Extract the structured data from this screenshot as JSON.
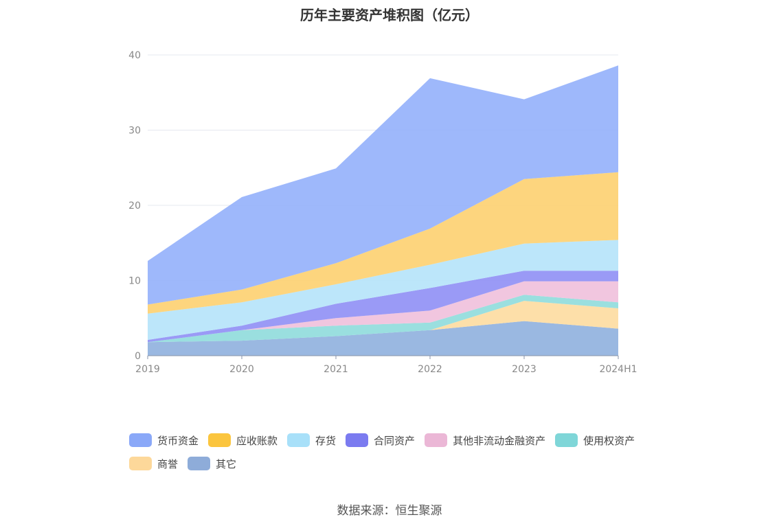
{
  "chart_data": {
    "type": "area",
    "stacked": true,
    "title": "历年主要资产堆积图（亿元）",
    "categories": [
      "2019",
      "2020",
      "2021",
      "2022",
      "2023",
      "2024H1"
    ],
    "ylim": [
      0,
      40
    ],
    "yticks": [
      0,
      10,
      20,
      30,
      40
    ],
    "grid": true,
    "legend_position": "bottom",
    "series": [
      {
        "name": "其它",
        "color": "#8fb0de",
        "values": [
          1.8,
          2.0,
          2.6,
          3.4,
          4.6,
          3.6
        ]
      },
      {
        "name": "商誉",
        "color": "#fddba0",
        "values": [
          0.0,
          0.0,
          0.0,
          0.0,
          2.7,
          2.7
        ]
      },
      {
        "name": "使用权资产",
        "color": "#8fdcdc",
        "values": [
          0.0,
          1.4,
          1.4,
          1.0,
          0.8,
          0.8
        ]
      },
      {
        "name": "其他非流动金融资产",
        "color": "#f0c0dc",
        "values": [
          0.0,
          0.0,
          1.0,
          1.6,
          1.8,
          2.8
        ]
      },
      {
        "name": "合同资产",
        "color": "#8f8ff5",
        "values": [
          0.3,
          0.6,
          1.9,
          3.0,
          1.4,
          1.4
        ]
      },
      {
        "name": "存货",
        "color": "#b5e3fa",
        "values": [
          3.5,
          3.1,
          2.6,
          3.1,
          3.6,
          4.1
        ]
      },
      {
        "name": "应收账款",
        "color": "#fdd070",
        "values": [
          1.2,
          1.7,
          2.8,
          4.8,
          8.6,
          9.0
        ]
      },
      {
        "name": "货币资金",
        "color": "#94b0fb",
        "values": [
          5.8,
          12.3,
          12.6,
          20.0,
          10.6,
          14.2
        ]
      }
    ]
  },
  "legend": {
    "items": [
      {
        "label": "货币资金",
        "color": "#8aa8f8"
      },
      {
        "label": "应收账款",
        "color": "#fbc53e"
      },
      {
        "label": "存货",
        "color": "#a8e0f9"
      },
      {
        "label": "合同资产",
        "color": "#7b7bf0"
      },
      {
        "label": "其他非流动金融资产",
        "color": "#ebb7d6"
      },
      {
        "label": "使用权资产",
        "color": "#7fd6d8"
      },
      {
        "label": "商誉",
        "color": "#fdd89a"
      },
      {
        "label": "其它",
        "color": "#8eacd9"
      }
    ]
  },
  "source": "数据来源：恒生聚源"
}
